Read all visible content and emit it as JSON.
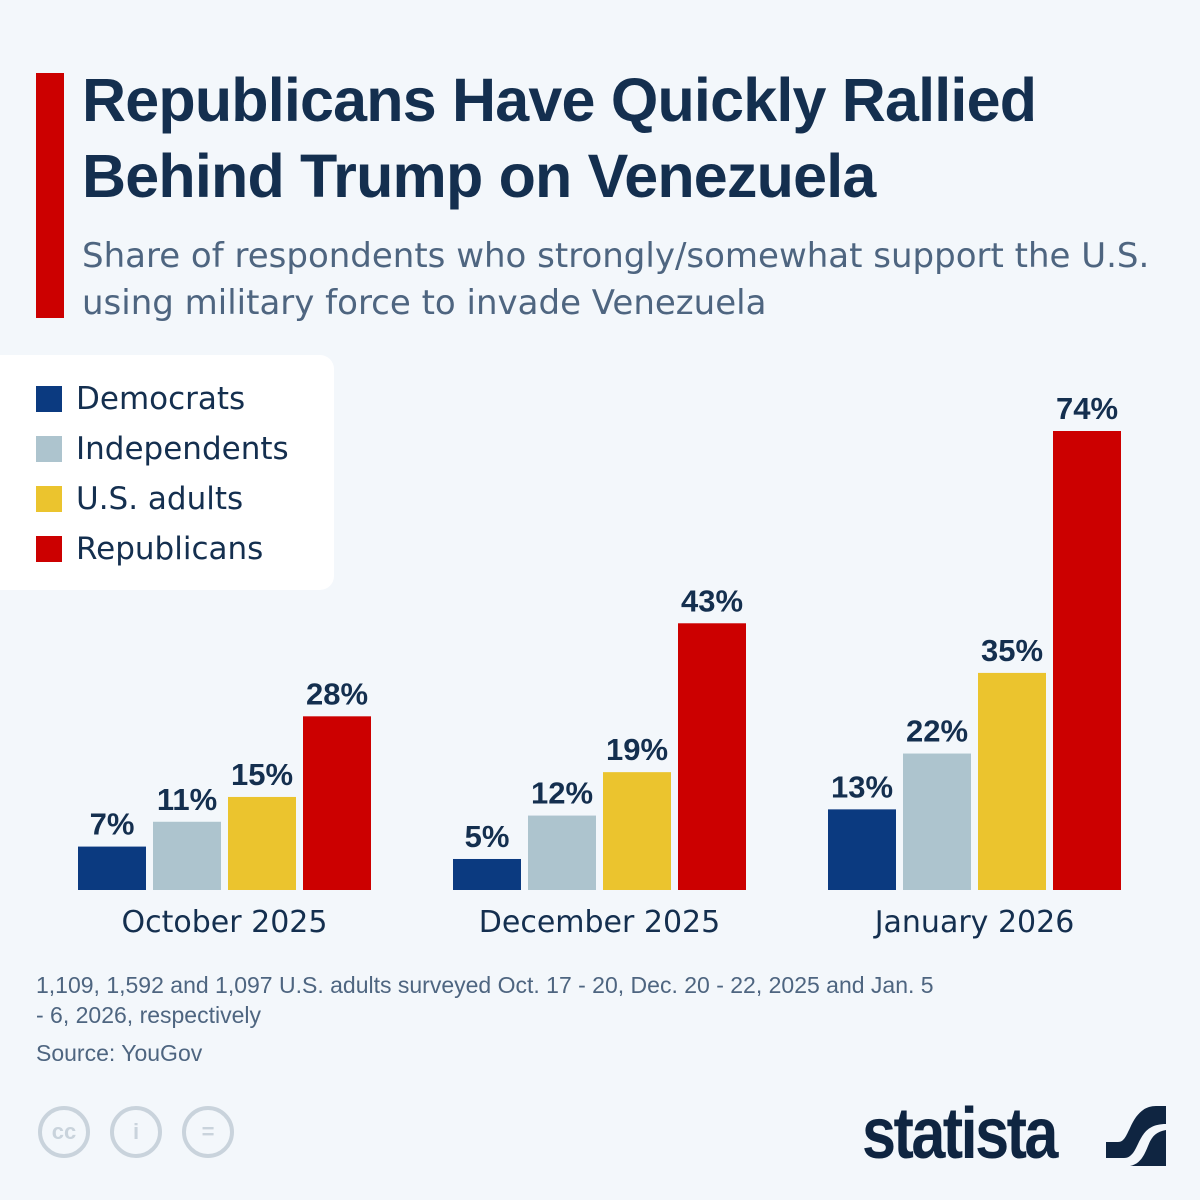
{
  "title": "Republicans Have Quickly Rallied Behind Trump on Venezuela",
  "subtitle": "Share of respondents who strongly/somewhat support the U.S. using military force to invade Venezuela",
  "chart_data": {
    "type": "bar",
    "categories": [
      "October 2025",
      "December 2025",
      "January 2026"
    ],
    "series": [
      {
        "name": "Democrats",
        "color": "#0b3a80",
        "values": [
          7,
          5,
          13
        ]
      },
      {
        "name": "Independents",
        "color": "#adc4ce",
        "values": [
          11,
          12,
          22
        ]
      },
      {
        "name": "U.S. adults",
        "color": "#ebc42e",
        "values": [
          15,
          19,
          35
        ]
      },
      {
        "name": "Republicans",
        "color": "#cc0000",
        "values": [
          28,
          43,
          74
        ]
      }
    ],
    "value_suffix": "%",
    "ylim": [
      0,
      74
    ],
    "grid": false,
    "legend_position": "top-left"
  },
  "footer": {
    "note": "1,109, 1,592 and 1,097 U.S. adults surveyed Oct. 17 - 20, Dec. 20 - 22, 2025 and Jan. 5 - 6, 2026, respectively",
    "source": "Source: YouGov",
    "license_icons": [
      "cc-icon",
      "attribution-icon",
      "no-derivatives-icon"
    ],
    "license_labels": [
      "cc",
      "i",
      "="
    ],
    "brand": "statista"
  },
  "colors": {
    "background": "#f3f7fb",
    "title": "#142f4f",
    "accent": "#cc0000"
  }
}
